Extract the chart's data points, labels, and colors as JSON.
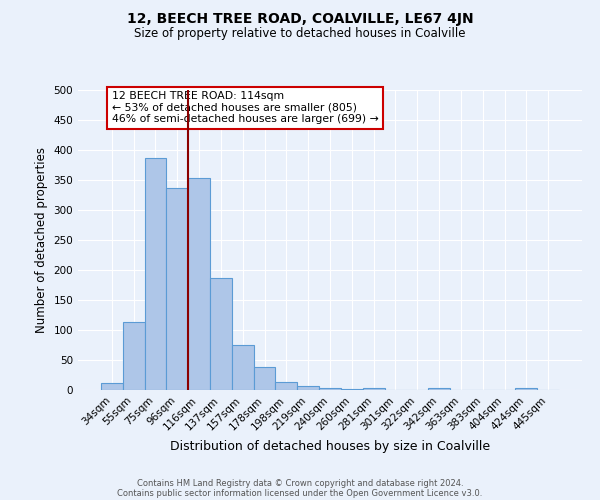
{
  "title": "12, BEECH TREE ROAD, COALVILLE, LE67 4JN",
  "subtitle": "Size of property relative to detached houses in Coalville",
  "xlabel": "Distribution of detached houses by size in Coalville",
  "ylabel": "Number of detached properties",
  "bar_labels": [
    "34sqm",
    "55sqm",
    "75sqm",
    "96sqm",
    "116sqm",
    "137sqm",
    "157sqm",
    "178sqm",
    "198sqm",
    "219sqm",
    "240sqm",
    "260sqm",
    "281sqm",
    "301sqm",
    "322sqm",
    "342sqm",
    "363sqm",
    "383sqm",
    "404sqm",
    "424sqm",
    "445sqm"
  ],
  "bar_values": [
    12,
    113,
    387,
    336,
    354,
    186,
    75,
    38,
    13,
    7,
    4,
    2,
    4,
    0,
    0,
    4,
    0,
    0,
    0,
    4,
    0
  ],
  "bar_color": "#aec6e8",
  "bar_edge_color": "#5b9bd5",
  "bg_color": "#eaf1fb",
  "grid_color": "#ffffff",
  "vline_x_index": 4,
  "vline_color": "#8b0000",
  "annotation_text": "12 BEECH TREE ROAD: 114sqm\n← 53% of detached houses are smaller (805)\n46% of semi-detached houses are larger (699) →",
  "annotation_box_color": "#ffffff",
  "annotation_box_edge": "#cc0000",
  "footer1": "Contains HM Land Registry data © Crown copyright and database right 2024.",
  "footer2": "Contains public sector information licensed under the Open Government Licence v3.0.",
  "ylim": [
    0,
    500
  ],
  "yticks": [
    0,
    50,
    100,
    150,
    200,
    250,
    300,
    350,
    400,
    450,
    500
  ]
}
